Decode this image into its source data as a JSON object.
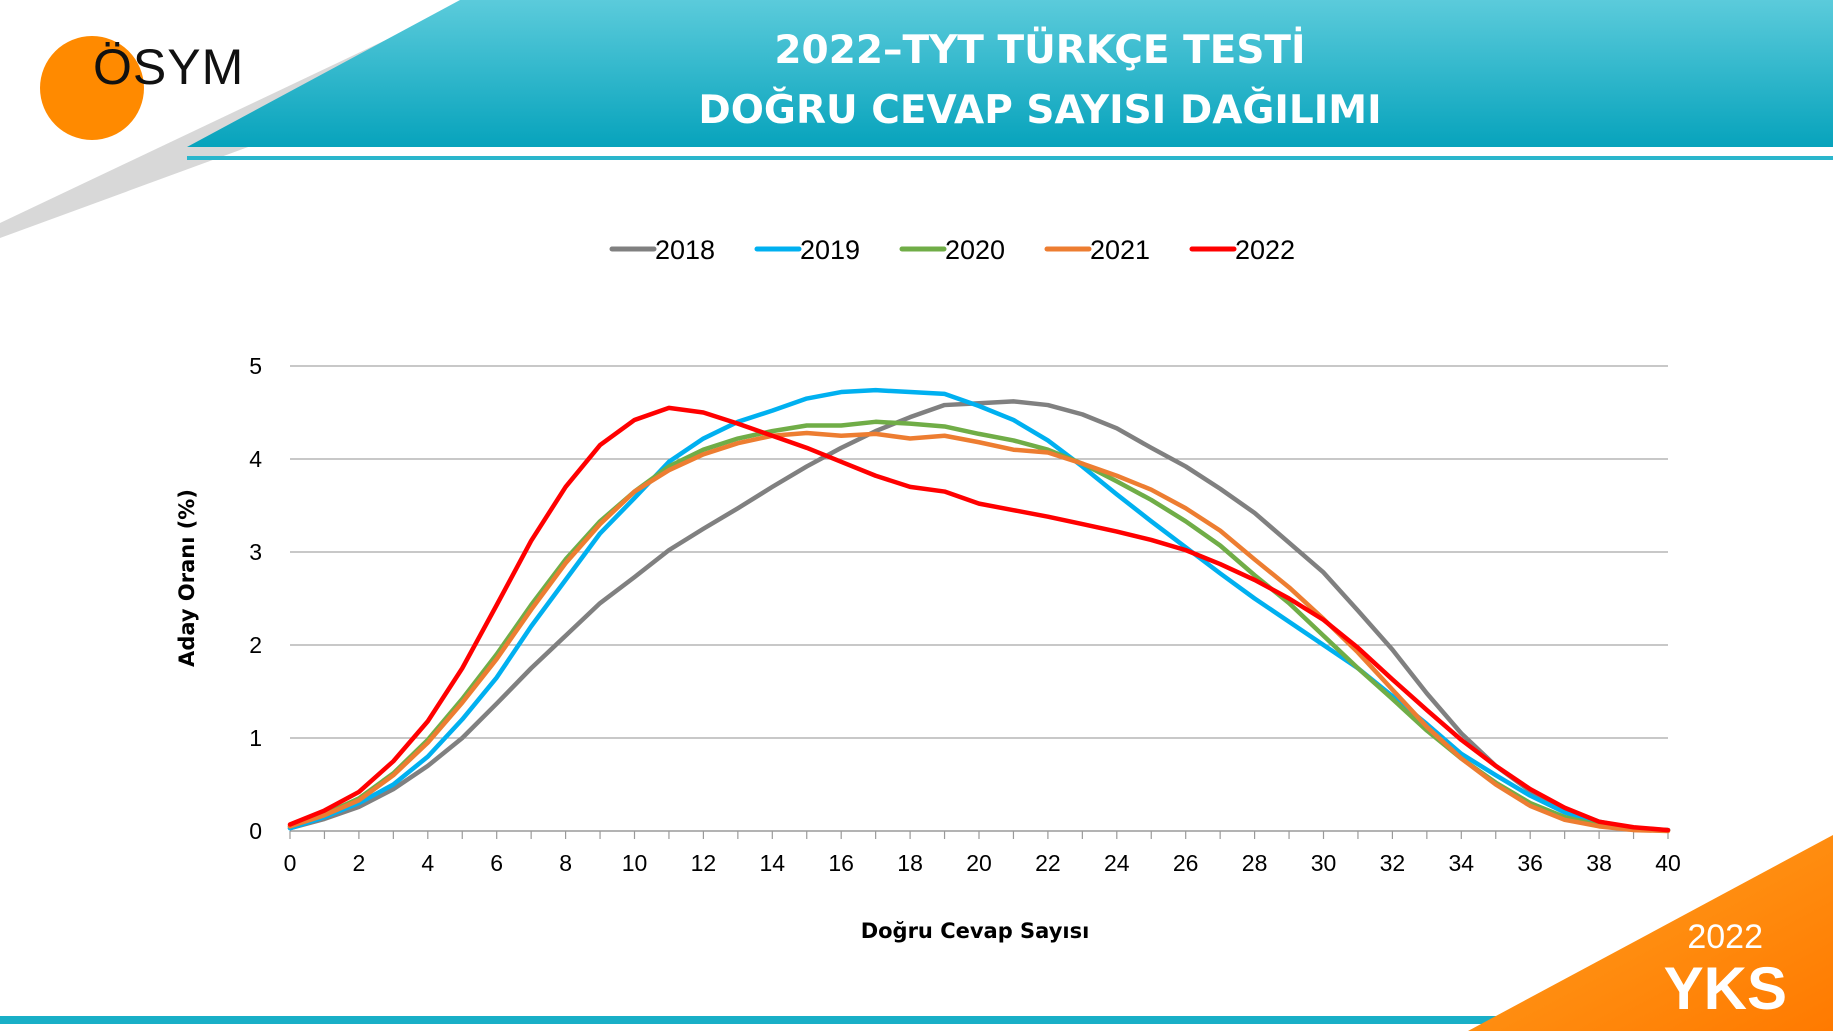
{
  "header": {
    "title_line1": "2022–TYT TÜRKÇE TESTİ",
    "title_line2": "DOĞRU CEVAP SAYISI DAĞILIMI",
    "logo_text": "ÖSYM"
  },
  "badge": {
    "year": "2022",
    "label": "YKS"
  },
  "colors": {
    "teal": "#0aa3bd",
    "orange": "#ff8a00",
    "rule": "#2ab6cc"
  },
  "chart_data": {
    "type": "line",
    "xlabel": "Doğru Cevap Sayısı",
    "ylabel": "Aday Oranı (%)",
    "xlim": [
      0,
      40
    ],
    "ylim": [
      0,
      5
    ],
    "x_ticks": [
      0,
      2,
      4,
      6,
      8,
      10,
      12,
      14,
      16,
      18,
      20,
      22,
      24,
      26,
      28,
      30,
      32,
      34,
      36,
      38,
      40
    ],
    "y_ticks": [
      0,
      1,
      2,
      3,
      4,
      5
    ],
    "grid": true,
    "legend_position": "top-center",
    "x": [
      0,
      1,
      2,
      3,
      4,
      5,
      6,
      7,
      8,
      9,
      10,
      11,
      12,
      13,
      14,
      15,
      16,
      17,
      18,
      19,
      20,
      21,
      22,
      23,
      24,
      25,
      26,
      27,
      28,
      29,
      30,
      31,
      32,
      33,
      34,
      35,
      36,
      37,
      38,
      39,
      40
    ],
    "series": [
      {
        "name": "2018",
        "color": "#808080",
        "values": [
          0.03,
          0.13,
          0.26,
          0.45,
          0.7,
          1.0,
          1.37,
          1.75,
          2.1,
          2.45,
          2.73,
          3.02,
          3.25,
          3.47,
          3.7,
          3.92,
          4.12,
          4.3,
          4.45,
          4.58,
          4.6,
          4.62,
          4.58,
          4.48,
          4.33,
          4.12,
          3.92,
          3.68,
          3.42,
          3.1,
          2.78,
          2.37,
          1.95,
          1.48,
          1.05,
          0.7,
          0.43,
          0.24,
          0.1,
          0.03,
          0.01
        ]
      },
      {
        "name": "2019",
        "color": "#00b0f0",
        "values": [
          0.03,
          0.15,
          0.3,
          0.5,
          0.8,
          1.2,
          1.65,
          2.2,
          2.7,
          3.2,
          3.58,
          3.97,
          4.22,
          4.4,
          4.52,
          4.65,
          4.72,
          4.74,
          4.72,
          4.7,
          4.57,
          4.42,
          4.2,
          3.92,
          3.62,
          3.33,
          3.05,
          2.77,
          2.5,
          2.25,
          2.0,
          1.75,
          1.45,
          1.15,
          0.83,
          0.6,
          0.38,
          0.2,
          0.08,
          0.02,
          0.01
        ]
      },
      {
        "name": "2020",
        "color": "#70ad47",
        "values": [
          0.05,
          0.18,
          0.35,
          0.62,
          0.98,
          1.42,
          1.9,
          2.43,
          2.92,
          3.33,
          3.65,
          3.92,
          4.1,
          4.22,
          4.3,
          4.36,
          4.36,
          4.4,
          4.38,
          4.35,
          4.27,
          4.2,
          4.1,
          3.95,
          3.76,
          3.56,
          3.33,
          3.07,
          2.75,
          2.45,
          2.1,
          1.75,
          1.42,
          1.08,
          0.78,
          0.52,
          0.3,
          0.15,
          0.06,
          0.02,
          0.01
        ]
      },
      {
        "name": "2021",
        "color": "#ed7d31",
        "values": [
          0.05,
          0.17,
          0.33,
          0.6,
          0.95,
          1.38,
          1.85,
          2.38,
          2.88,
          3.3,
          3.65,
          3.88,
          4.05,
          4.17,
          4.25,
          4.28,
          4.25,
          4.27,
          4.22,
          4.25,
          4.18,
          4.1,
          4.07,
          3.95,
          3.82,
          3.67,
          3.47,
          3.23,
          2.92,
          2.62,
          2.28,
          1.92,
          1.52,
          1.12,
          0.78,
          0.5,
          0.27,
          0.12,
          0.05,
          0.01,
          0.0
        ]
      },
      {
        "name": "2022",
        "color": "#ff0000",
        "values": [
          0.07,
          0.22,
          0.42,
          0.75,
          1.18,
          1.75,
          2.43,
          3.12,
          3.7,
          4.15,
          4.42,
          4.55,
          4.5,
          4.38,
          4.25,
          4.12,
          3.97,
          3.82,
          3.7,
          3.65,
          3.52,
          3.45,
          3.38,
          3.3,
          3.22,
          3.13,
          3.02,
          2.87,
          2.7,
          2.5,
          2.27,
          1.97,
          1.63,
          1.3,
          0.98,
          0.7,
          0.45,
          0.25,
          0.1,
          0.04,
          0.01
        ]
      }
    ]
  }
}
